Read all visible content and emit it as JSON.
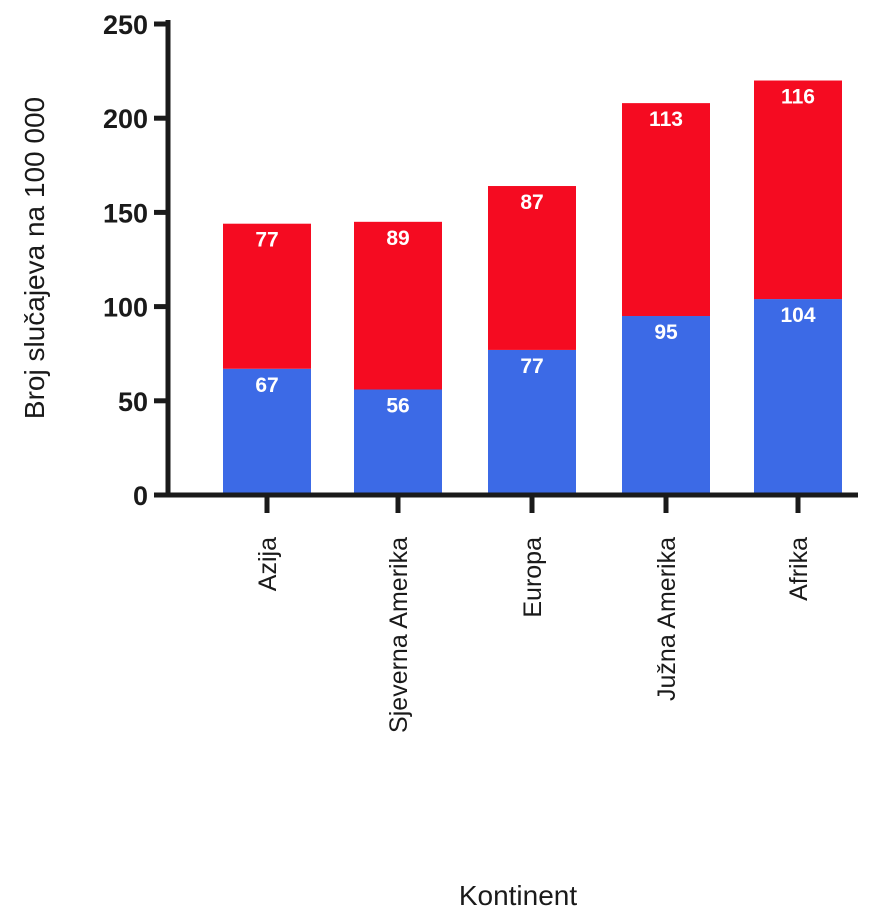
{
  "chart_data": {
    "type": "bar",
    "stacked": true,
    "title": "",
    "xlabel": "Kontinent",
    "ylabel": "Broj slučajeva na 100 000",
    "ylim": [
      0,
      250
    ],
    "yticks": [
      0,
      50,
      100,
      150,
      200,
      250
    ],
    "categories": [
      "Azija",
      "Sjeverna Amerika",
      "Europa",
      "Južna Amerika",
      "Afrika"
    ],
    "series": [
      {
        "values": [
          67,
          56,
          77,
          95,
          104
        ],
        "color": "#3c6ae6"
      },
      {
        "values": [
          77,
          89,
          87,
          113,
          116
        ],
        "color": "#f50b21"
      }
    ],
    "legend": "none",
    "grid": false
  }
}
